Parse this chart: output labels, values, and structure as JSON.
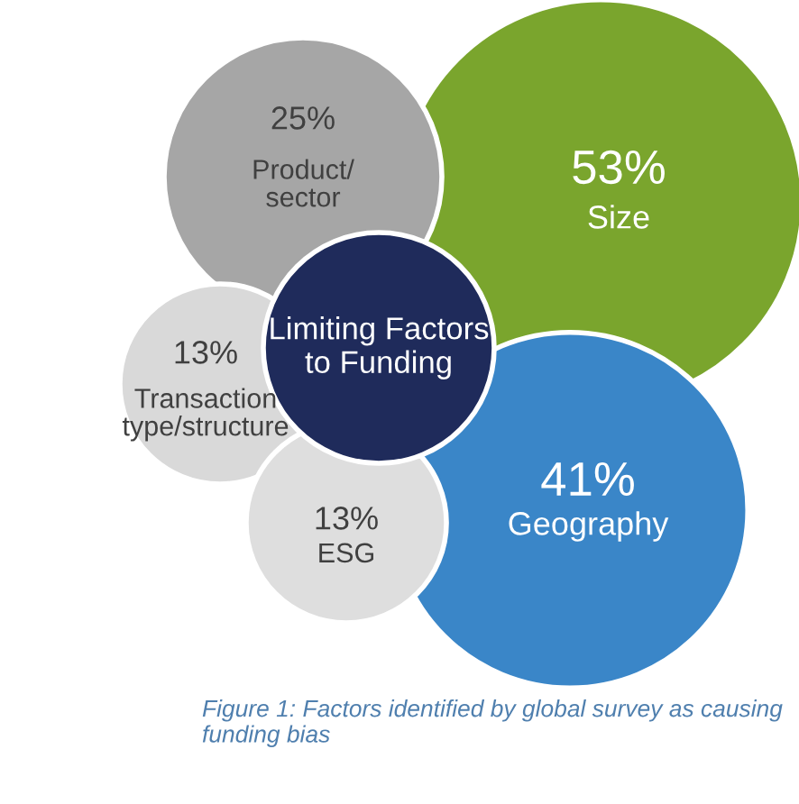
{
  "chart_data": {
    "type": "other",
    "title": "Limiting Factors\nto Funding",
    "categories": [
      "Size",
      "Geography",
      "Product/\nsector",
      "Transaction\ntype/structure",
      "ESG"
    ],
    "values": [
      53,
      41,
      25,
      13,
      13
    ],
    "value_labels": [
      "53%",
      "41%",
      "25%",
      "13%",
      "13%"
    ],
    "colors": [
      "#7aa52d",
      "#3a86c8",
      "#a6a6a6",
      "#d9d9d9",
      "#dedede"
    ],
    "annotations": [
      "Figure 1: Factors identified by global survey as causing funding bias"
    ]
  }
}
